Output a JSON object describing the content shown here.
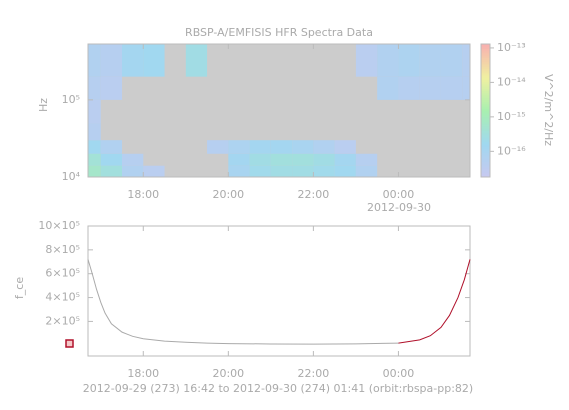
{
  "chart_data": [
    {
      "type": "heatmap",
      "title": "RBSP-A/EMFISIS  HFR Spectra Data",
      "ylabel": "Hz",
      "zlabel": "V^2/m^2/Hz",
      "date_label": "2012-09-30",
      "x_edges": [
        16.7,
        17,
        17.5,
        18,
        18.5,
        19,
        19.5,
        20,
        20.5,
        21,
        21.5,
        22,
        22.5,
        23,
        23.5,
        24,
        24.5,
        25,
        25.5,
        25.683
      ],
      "y_edges": [
        10000,
        14000,
        20000,
        30000,
        50000,
        100000,
        200000,
        530000
      ],
      "values": [
        [
          6.3e-16,
          3.2e-16,
          6.3e-17,
          4e-17,
          null,
          null,
          null,
          1e-16,
          2e-16,
          2.5e-16,
          2.5e-16,
          2e-16,
          1.6e-16,
          6.3e-17,
          null,
          null,
          null,
          null,
          null
        ],
        [
          4e-16,
          1.6e-16,
          5e-17,
          null,
          null,
          null,
          null,
          1.3e-16,
          2.5e-16,
          3.2e-16,
          3.2e-16,
          2.5e-16,
          1.3e-16,
          5e-17,
          null,
          null,
          null,
          null,
          null
        ],
        [
          1.6e-16,
          6.3e-17,
          null,
          null,
          null,
          null,
          5e-17,
          8e-17,
          1.3e-16,
          1.3e-16,
          1e-16,
          6.3e-17,
          4e-17,
          null,
          null,
          null,
          null,
          null,
          null
        ],
        [
          5e-17,
          null,
          null,
          null,
          null,
          null,
          null,
          null,
          null,
          null,
          null,
          null,
          null,
          null,
          null,
          null,
          null,
          null,
          null
        ],
        [
          4e-17,
          null,
          null,
          null,
          null,
          null,
          null,
          null,
          null,
          null,
          null,
          null,
          null,
          null,
          null,
          null,
          null,
          null,
          null
        ],
        [
          5e-17,
          4e-17,
          null,
          null,
          null,
          null,
          null,
          null,
          null,
          null,
          null,
          null,
          null,
          null,
          6.3e-17,
          5e-17,
          5e-17,
          5e-17,
          5e-17
        ],
        [
          6.3e-17,
          5e-17,
          1.3e-16,
          1.6e-16,
          null,
          2.5e-16,
          null,
          null,
          null,
          null,
          null,
          null,
          null,
          4e-17,
          6.3e-17,
          8e-17,
          6.3e-17,
          6.3e-17,
          5e-17
        ]
      ],
      "xlim": [
        16.7,
        25.683
      ],
      "xticks": [
        {
          "value": 18,
          "label": "18:00"
        },
        {
          "value": 20,
          "label": "20:00"
        },
        {
          "value": 22,
          "label": "22:00"
        },
        {
          "value": 24,
          "label": "00:00"
        }
      ],
      "ylim": [
        10000,
        530000
      ],
      "ylog": true,
      "yticks": [
        {
          "value": 10000,
          "label": "10⁴"
        },
        {
          "value": 100000,
          "label": "10⁵"
        }
      ],
      "zlim": [
        1.8e-17,
        1.3e-13
      ],
      "zlog": true,
      "zticks": [
        {
          "value": 1e-13,
          "label": "10⁻¹³"
        },
        {
          "value": 1e-14,
          "label": "10⁻¹⁴"
        },
        {
          "value": 1e-15,
          "label": "10⁻¹⁵"
        },
        {
          "value": 1e-16,
          "label": "10⁻¹⁶"
        }
      ]
    },
    {
      "type": "line",
      "ylabel": "f_ce",
      "xlabel": "2012-09-29 (273) 16:42 to 2012-09-30 (274) 01:41 (orbit:rbspa-pp:82)",
      "series": [
        {
          "color": "#aaaaaa",
          "x": [
            16.7,
            16.8,
            16.9,
            17,
            17.1,
            17.25,
            17.5,
            17.75,
            18,
            18.5,
            19,
            19.5,
            20,
            21,
            22,
            23,
            24
          ],
          "values": [
            720000,
            600000,
            470000,
            360000,
            270000,
            180000,
            110000,
            75000,
            55000,
            35000,
            25000,
            18000,
            14000,
            11000,
            10000,
            12000,
            18000
          ]
        },
        {
          "color": "#b0102a",
          "x": [
            24,
            24.5,
            24.75,
            25,
            25.2,
            25.4,
            25.55,
            25.683
          ],
          "values": [
            18000,
            45000,
            80000,
            150000,
            250000,
            400000,
            550000,
            720000
          ]
        }
      ],
      "xlim": [
        16.7,
        25.683
      ],
      "xticks": [
        {
          "value": 18,
          "label": "18:00"
        },
        {
          "value": 20,
          "label": "20:00"
        },
        {
          "value": 22,
          "label": "22:00"
        },
        {
          "value": 24,
          "label": "00:00"
        }
      ],
      "ylim": [
        -90000,
        1000000
      ],
      "yticks": [
        {
          "value": 200000,
          "label": "2×10⁵"
        },
        {
          "value": 400000,
          "label": "4×10⁵"
        },
        {
          "value": 600000,
          "label": "6×10⁵"
        },
        {
          "value": 800000,
          "label": "8×10⁵"
        },
        {
          "value": 1000000,
          "label": "10×10⁵"
        }
      ]
    }
  ]
}
